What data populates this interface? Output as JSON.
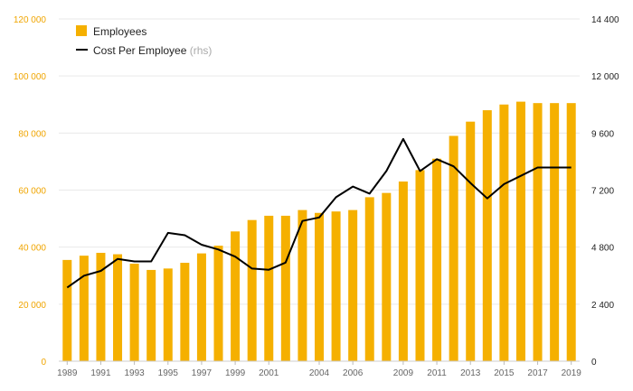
{
  "chart_data": {
    "type": "bar+line",
    "x": [
      "1989",
      "1990",
      "1991",
      "1992",
      "1993",
      "1994",
      "1995",
      "1996",
      "1997",
      "1998",
      "1999",
      "2000",
      "2001",
      "2002",
      "2003",
      "2004",
      "2005",
      "2006",
      "2007",
      "2008",
      "2009",
      "2010",
      "2011",
      "2012",
      "2013",
      "2014",
      "2015",
      "2016",
      "2017",
      "2018",
      "2019"
    ],
    "x_tick_labels": [
      "1989",
      "1991",
      "1993",
      "1995",
      "1997",
      "1999",
      "2001",
      "2004",
      "2006",
      "2009",
      "2011",
      "2013",
      "2015",
      "2017",
      "2019"
    ],
    "series": [
      {
        "name": "Employees",
        "type": "bar",
        "axis": "left",
        "color": "#f5b000",
        "values": [
          35500,
          37000,
          38000,
          37500,
          34200,
          32000,
          32500,
          34500,
          37800,
          40500,
          45500,
          49500,
          51000,
          51000,
          53000,
          52000,
          52500,
          53000,
          57500,
          59000,
          63000,
          67000,
          71000,
          79000,
          84000,
          88000,
          90000,
          91000,
          90500,
          90500,
          90500
        ]
      },
      {
        "name": "Cost Per Employee",
        "name_suffix": "(rhs)",
        "type": "line",
        "axis": "right",
        "color": "#000000",
        "values": [
          3100,
          3600,
          3800,
          4300,
          4200,
          4200,
          5400,
          5300,
          4900,
          4700,
          4400,
          3900,
          3850,
          4150,
          5900,
          6050,
          6900,
          7350,
          7050,
          8000,
          9350,
          8000,
          8500,
          8200,
          7500,
          6850,
          7450,
          7800,
          8150,
          8150,
          8150
        ]
      }
    ],
    "left_axis": {
      "ticks": [
        "0",
        "20 000",
        "40 000",
        "60 000",
        "80 000",
        "100 000",
        "120 000"
      ],
      "ylim": [
        0,
        120000
      ]
    },
    "right_axis": {
      "ticks": [
        "0",
        "2 400",
        "4 800",
        "7 200",
        "9 600",
        "12 000",
        "14 400"
      ],
      "ylim": [
        0,
        14400
      ]
    },
    "legend_position": "top-left",
    "grid": true
  }
}
